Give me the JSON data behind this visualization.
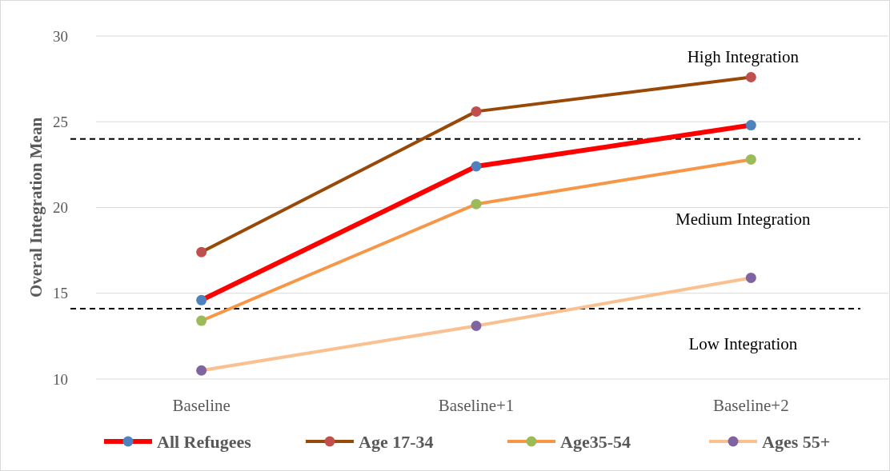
{
  "chart_data": {
    "type": "line",
    "ylabel": "Overal Integration Mean",
    "categories": [
      "Baseline",
      "Baseline+1",
      "Baseline+2"
    ],
    "series": [
      {
        "name": "All Refugees",
        "color": "#ff0000",
        "values": [
          14.6,
          22.4,
          24.8
        ]
      },
      {
        "name": "Age 17-34",
        "color": "#984807",
        "values": [
          17.4,
          25.6,
          27.6
        ]
      },
      {
        "name": "Age35-54",
        "color": "#f79646",
        "values": [
          13.4,
          20.2,
          22.8
        ]
      },
      {
        "name": "Ages 55+",
        "color": "#fac090",
        "values": [
          10.5,
          13.1,
          15.9
        ]
      }
    ],
    "ylim": [
      10,
      30
    ],
    "yticks": [
      10,
      15,
      20,
      25,
      30
    ],
    "grid": "y",
    "legend": "bottom",
    "marker": "circle",
    "ref_lines": [
      {
        "axis": "y",
        "value": 24,
        "color": "#000000",
        "line_style": "dashed"
      },
      {
        "axis": "y",
        "value": 14.1,
        "color": "#000000",
        "line_style": "dashed"
      }
    ],
    "annotations": [
      "High Integration",
      "Medium Integration",
      "Low Integration"
    ]
  }
}
